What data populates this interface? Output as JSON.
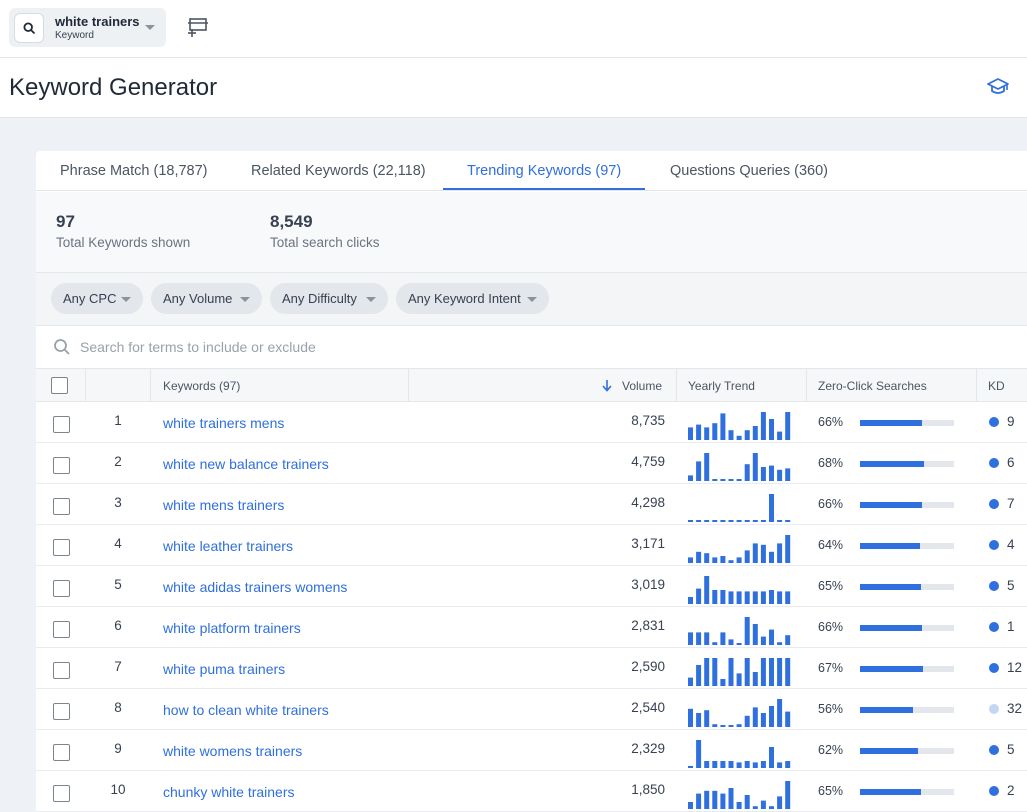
{
  "search": {
    "keyword": "white trainers",
    "type": "Keyword"
  },
  "page": {
    "title": "Keyword Generator"
  },
  "tabs": [
    {
      "label": "Phrase Match (18,787)",
      "active": false
    },
    {
      "label": "Related Keywords (22,118)",
      "active": false
    },
    {
      "label": "Trending Keywords (97)",
      "active": true
    },
    {
      "label": "Questions Queries (360)",
      "active": false
    }
  ],
  "stats": [
    {
      "value": "97",
      "label": "Total Keywords shown"
    },
    {
      "value": "8,549",
      "label": "Total search clicks"
    }
  ],
  "filters": [
    "Any CPC",
    "Any Volume",
    "Any Difficulty",
    "Any Keyword Intent"
  ],
  "term_search": {
    "placeholder": "Search for terms to include or exclude",
    "value": ""
  },
  "columns": {
    "keywords": "Keywords (97)",
    "volume": "Volume",
    "trend": "Yearly Trend",
    "zero_click": "Zero-Click Searches",
    "kd": "KD"
  },
  "colors": {
    "accent": "#2f6fde",
    "kd_easy": "#2f6fde",
    "kd_medium": "#c3d6f5"
  },
  "rows": [
    {
      "rank": "1",
      "keyword": "white trainers mens",
      "volume": "8,735",
      "zero_click": "66%",
      "zero_click_frac": 0.66,
      "kd": "9",
      "kd_level": "easy",
      "trend": [
        0.45,
        0.55,
        0.45,
        0.6,
        0.95,
        0.35,
        0.15,
        0.35,
        0.5,
        1.0,
        0.75,
        0.3,
        1.0
      ]
    },
    {
      "rank": "2",
      "keyword": "white new balance trainers",
      "volume": "4,759",
      "zero_click": "68%",
      "zero_click_frac": 0.68,
      "kd": "6",
      "kd_level": "easy",
      "trend": [
        0.2,
        0.7,
        1.0,
        0.05,
        0.05,
        0.05,
        0.05,
        0.6,
        1.0,
        0.5,
        0.55,
        0.4,
        0.45
      ]
    },
    {
      "rank": "3",
      "keyword": "white mens trainers",
      "volume": "4,298",
      "zero_click": "66%",
      "zero_click_frac": 0.66,
      "kd": "7",
      "kd_level": "easy",
      "trend": [
        0.05,
        0.05,
        0.05,
        0.05,
        0.05,
        0.05,
        0.05,
        0.05,
        0.05,
        0.05,
        1.0,
        0.05,
        0.05
      ]
    },
    {
      "rank": "4",
      "keyword": "white leather trainers",
      "volume": "3,171",
      "zero_click": "64%",
      "zero_click_frac": 0.64,
      "kd": "4",
      "kd_level": "easy",
      "trend": [
        0.2,
        0.4,
        0.35,
        0.2,
        0.25,
        0.1,
        0.2,
        0.45,
        0.7,
        0.65,
        0.4,
        0.7,
        1.0
      ]
    },
    {
      "rank": "5",
      "keyword": "white adidas trainers womens",
      "volume": "3,019",
      "zero_click": "65%",
      "zero_click_frac": 0.65,
      "kd": "5",
      "kd_level": "easy",
      "trend": [
        0.25,
        0.55,
        1.0,
        0.5,
        0.5,
        0.45,
        0.45,
        0.45,
        0.45,
        0.45,
        0.5,
        0.45,
        0.45
      ]
    },
    {
      "rank": "6",
      "keyword": "white platform trainers",
      "volume": "2,831",
      "zero_click": "66%",
      "zero_click_frac": 0.66,
      "kd": "1",
      "kd_level": "easy",
      "trend": [
        0.45,
        0.45,
        0.45,
        0.1,
        0.45,
        0.2,
        0.05,
        1.0,
        0.75,
        0.3,
        0.55,
        0.1,
        0.35
      ]
    },
    {
      "rank": "7",
      "keyword": "white puma trainers",
      "volume": "2,590",
      "zero_click": "67%",
      "zero_click_frac": 0.67,
      "kd": "12",
      "kd_level": "easy",
      "trend": [
        0.3,
        0.75,
        1.0,
        1.0,
        0.25,
        1.0,
        0.45,
        1.0,
        0.5,
        1.0,
        1.0,
        1.0,
        1.0
      ]
    },
    {
      "rank": "8",
      "keyword": "how to clean white trainers",
      "volume": "2,540",
      "zero_click": "56%",
      "zero_click_frac": 0.56,
      "kd": "32",
      "kd_level": "medium",
      "trend": [
        0.65,
        0.5,
        0.6,
        0.1,
        0.05,
        0.05,
        0.1,
        0.4,
        0.7,
        0.5,
        0.75,
        1.0,
        0.55
      ]
    },
    {
      "rank": "9",
      "keyword": "white womens trainers",
      "volume": "2,329",
      "zero_click": "62%",
      "zero_click_frac": 0.62,
      "kd": "5",
      "kd_level": "easy",
      "trend": [
        0.05,
        1.0,
        0.25,
        0.25,
        0.25,
        0.25,
        0.2,
        0.25,
        0.2,
        0.25,
        0.75,
        0.2,
        0.25
      ]
    },
    {
      "rank": "10",
      "keyword": "chunky white trainers",
      "volume": "1,850",
      "zero_click": "65%",
      "zero_click_frac": 0.65,
      "kd": "2",
      "kd_level": "easy",
      "trend": [
        0.25,
        0.55,
        0.65,
        0.65,
        0.55,
        0.75,
        0.25,
        0.5,
        0.1,
        0.3,
        0.1,
        0.45,
        1.0
      ]
    }
  ]
}
